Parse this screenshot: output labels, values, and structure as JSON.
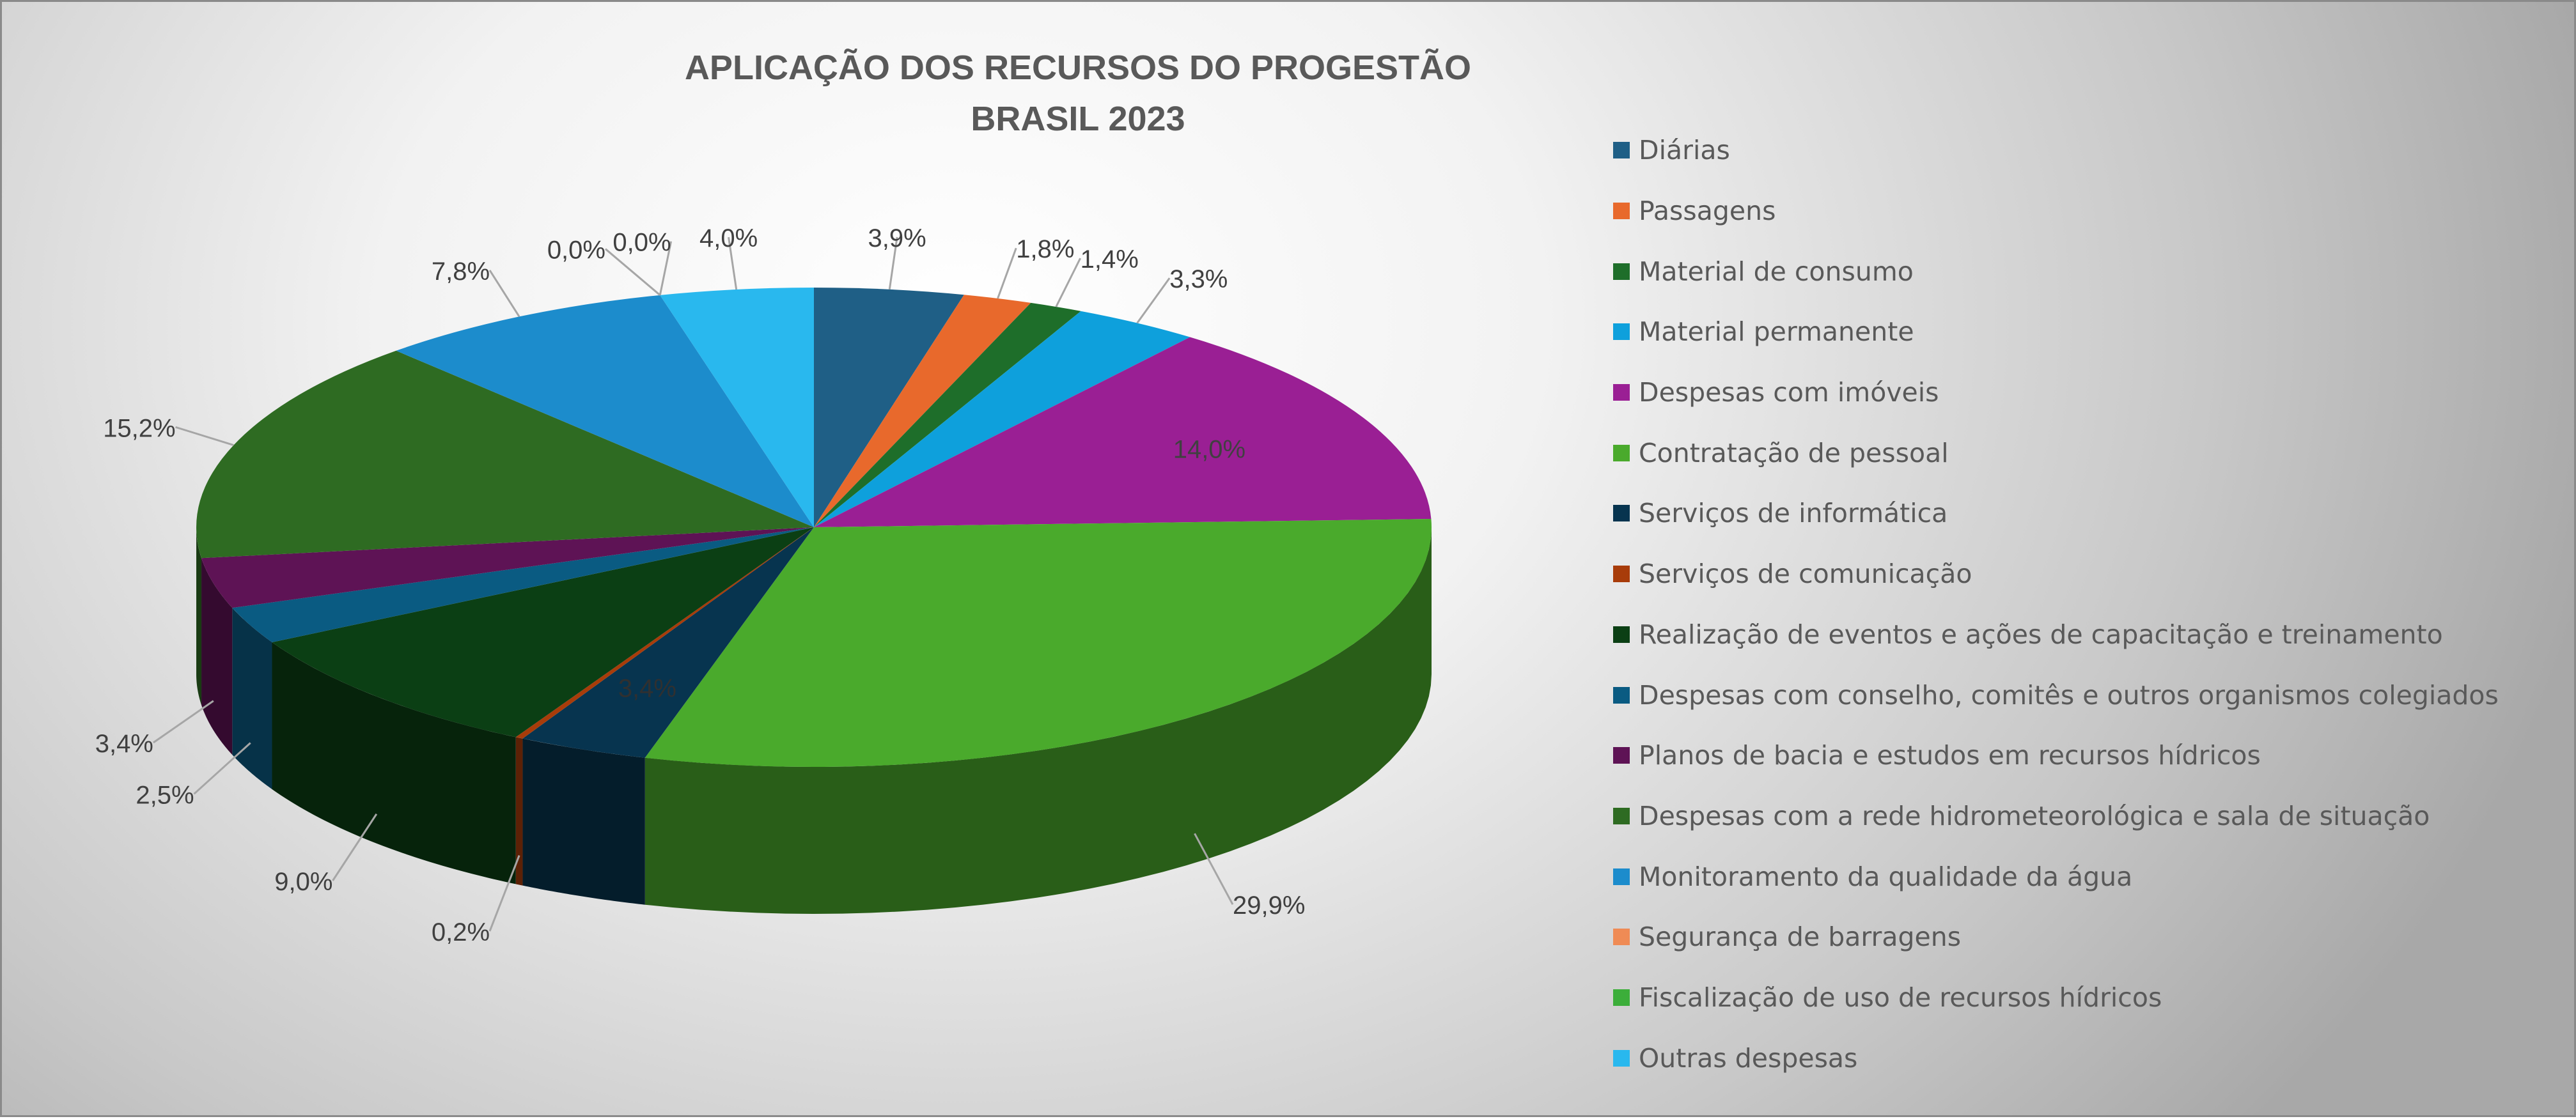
{
  "chart_data": {
    "type": "pie",
    "style": "3d",
    "title": [
      "APLICAÇÃO DOS RECURSOS DO PROGESTÃO",
      "BRASIL 2023"
    ],
    "legend_position": "right",
    "slices": [
      {
        "name": "Diárias",
        "value": 3.9,
        "label": "3,9%",
        "color": "#1f5f86"
      },
      {
        "name": "Passagens",
        "value": 1.8,
        "label": "1,8%",
        "color": "#e8692c"
      },
      {
        "name": "Material de consumo",
        "value": 1.4,
        "label": "1,4%",
        "color": "#1e6e2a"
      },
      {
        "name": "Material permanente",
        "value": 3.3,
        "label": "3,3%",
        "color": "#0ea0dc"
      },
      {
        "name": "Despesas com imóveis",
        "value": 14.0,
        "label": "14,0%",
        "color": "#9a1f94"
      },
      {
        "name": "Contratação de pessoal",
        "value": 29.9,
        "label": "29,9%",
        "color": "#4aaa2c"
      },
      {
        "name": "Serviços de informática",
        "value": 3.4,
        "label": "3,4%",
        "color": "#07344f"
      },
      {
        "name": "Serviços de comunicação",
        "value": 0.2,
        "label": "0,2%",
        "color": "#a83c0a"
      },
      {
        "name": "Realização de eventos e ações de capacitação e treinamento",
        "value": 9.0,
        "label": "9,0%",
        "color": "#0b3f14"
      },
      {
        "name": "Despesas com conselho, comitês e outros organismos colegiados",
        "value": 2.5,
        "label": "2,5%",
        "color": "#0a5b82"
      },
      {
        "name": "Planos de bacia e estudos em recursos hídricos",
        "value": 3.4,
        "label": "3,4%",
        "color": "#5e1355"
      },
      {
        "name": "Despesas com a rede hidrometeorológica e sala de situação",
        "value": 15.2,
        "label": "15,2%",
        "color": "#2e6b22"
      },
      {
        "name": "Monitoramento da qualidade da água",
        "value": 7.8,
        "label": "7,8%",
        "color": "#1c8ccc"
      },
      {
        "name": "Segurança de barragens",
        "value": 0.0,
        "label": "0,0%",
        "color": "#ef8b55"
      },
      {
        "name": "Fiscalização de uso de recursos hídricos",
        "value": 0.0,
        "label": "0,0%",
        "color": "#3cae3a"
      },
      {
        "name": "Outras despesas",
        "value": 4.0,
        "label": "4,0%",
        "color": "#29b8ee"
      }
    ]
  }
}
